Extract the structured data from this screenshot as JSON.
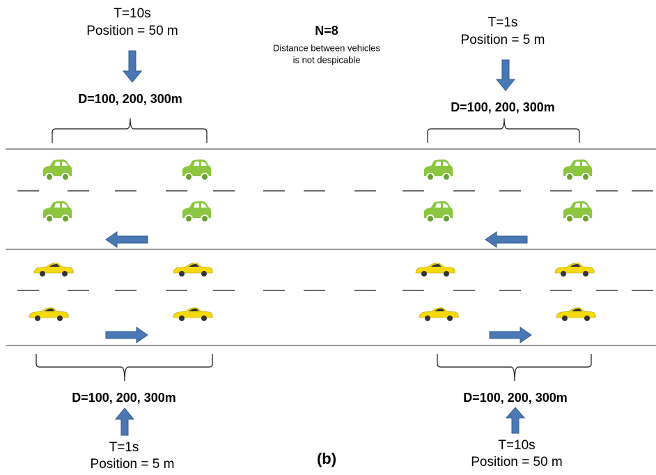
{
  "top_left": {
    "time": "T=10s",
    "position": "Position = 50 m",
    "distance": "D=100, 200, 300m"
  },
  "center": {
    "title": "N=8",
    "note": [
      "Distance between vehicles",
      "is not despicable"
    ]
  },
  "top_right": {
    "time": "T=1s",
    "position": "Position = 5 m",
    "distance": "D=100, 200, 300m"
  },
  "bottom_left": {
    "distance": "D=100, 200, 300m",
    "time": "T=1s",
    "position": "Position = 5 m"
  },
  "bottom_right": {
    "distance": "D=100, 200, 300m",
    "time": "T=10s",
    "position": "Position = 50 m"
  },
  "caption": "(b)"
}
